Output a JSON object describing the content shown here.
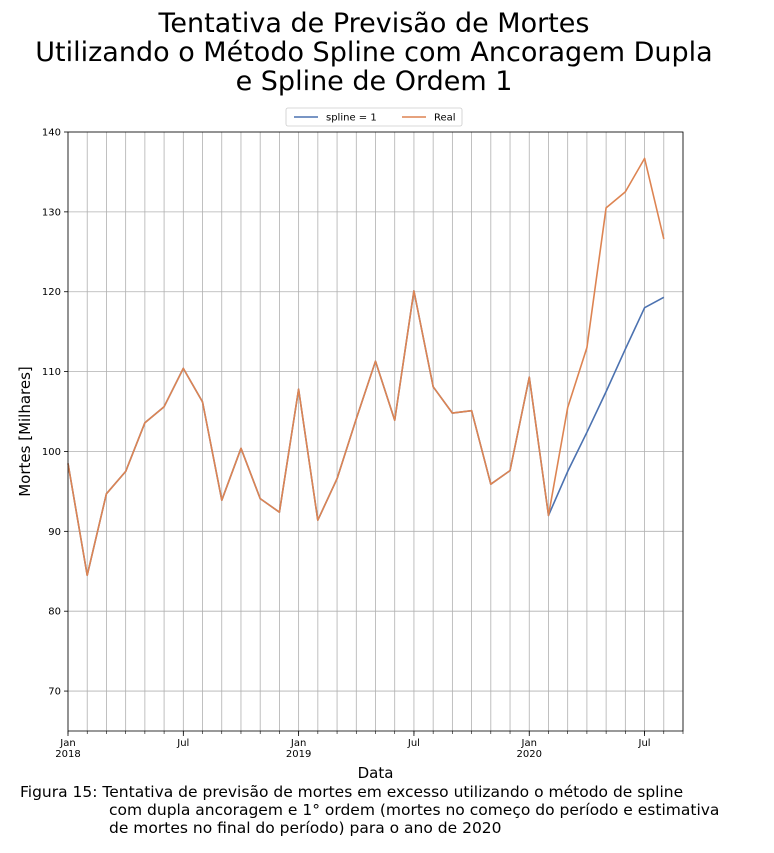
{
  "chart_data": {
    "type": "line",
    "title_lines": [
      "Tentativa de Previsão de Mortes",
      "Utilizando o Método Spline com Ancoragem Dupla",
      "e Spline de Ordem 1"
    ],
    "xlabel": "Data",
    "ylabel": "Mortes [Milhares]",
    "ylim": [
      65,
      140
    ],
    "yticks": [
      70,
      80,
      90,
      100,
      110,
      120,
      130,
      140
    ],
    "xlim": [
      "2018-01",
      "2020-09"
    ],
    "xtick_labels": [
      {
        "month": "2018-01",
        "lines": [
          "Jan",
          "2018"
        ]
      },
      {
        "month": "2018-07",
        "lines": [
          "Jul"
        ]
      },
      {
        "month": "2019-01",
        "lines": [
          "Jan",
          "2019"
        ]
      },
      {
        "month": "2019-07",
        "lines": [
          "Jul"
        ]
      },
      {
        "month": "2020-01",
        "lines": [
          "Jan",
          "2020"
        ]
      },
      {
        "month": "2020-07",
        "lines": [
          "Jul"
        ]
      }
    ],
    "grid": true,
    "legend_position": "top-center",
    "series": [
      {
        "name": "spline = 1",
        "color": "#4c72b0",
        "x": [
          "2018-01",
          "2018-02",
          "2018-03",
          "2018-04",
          "2018-05",
          "2018-06",
          "2018-07",
          "2018-08",
          "2018-09",
          "2018-10",
          "2018-11",
          "2018-12",
          "2019-01",
          "2019-02",
          "2019-03",
          "2019-04",
          "2019-05",
          "2019-06",
          "2019-07",
          "2019-08",
          "2019-09",
          "2019-10",
          "2019-11",
          "2019-12",
          "2020-01",
          "2020-02",
          "2020-03",
          "2020-04",
          "2020-05",
          "2020-06",
          "2020-07",
          "2020-08"
        ],
        "values": [
          98.5,
          84.5,
          94.7,
          97.5,
          103.6,
          105.6,
          110.4,
          106.2,
          93.9,
          100.4,
          94.1,
          92.4,
          107.8,
          91.4,
          96.6,
          104.1,
          111.3,
          103.9,
          120.1,
          108.1,
          104.8,
          105.1,
          95.9,
          97.6,
          109.3,
          92.0,
          97.5,
          102.4,
          107.5,
          112.8,
          118.0,
          119.3
        ]
      },
      {
        "name": "Real",
        "color": "#dd8452",
        "x": [
          "2018-01",
          "2018-02",
          "2018-03",
          "2018-04",
          "2018-05",
          "2018-06",
          "2018-07",
          "2018-08",
          "2018-09",
          "2018-10",
          "2018-11",
          "2018-12",
          "2019-01",
          "2019-02",
          "2019-03",
          "2019-04",
          "2019-05",
          "2019-06",
          "2019-07",
          "2019-08",
          "2019-09",
          "2019-10",
          "2019-11",
          "2019-12",
          "2020-01",
          "2020-02",
          "2020-03",
          "2020-04",
          "2020-05",
          "2020-06",
          "2020-07",
          "2020-08"
        ],
        "values": [
          98.5,
          84.5,
          94.7,
          97.5,
          103.6,
          105.6,
          110.4,
          106.2,
          93.9,
          100.4,
          94.1,
          92.4,
          107.8,
          91.4,
          96.6,
          104.1,
          111.3,
          103.9,
          120.1,
          108.1,
          104.8,
          105.1,
          95.9,
          97.6,
          109.3,
          92.0,
          105.5,
          113.0,
          130.5,
          132.5,
          136.7,
          126.6
        ]
      }
    ]
  },
  "caption": {
    "line1": "Figura 15: Tentativa de previsão de mortes em excesso utilizando o método de spline",
    "line2": "com dupla ancoragem e 1° ordem (mortes no começo do período e estimativa",
    "line3": "de mortes no final do período) para o ano de 2020"
  }
}
